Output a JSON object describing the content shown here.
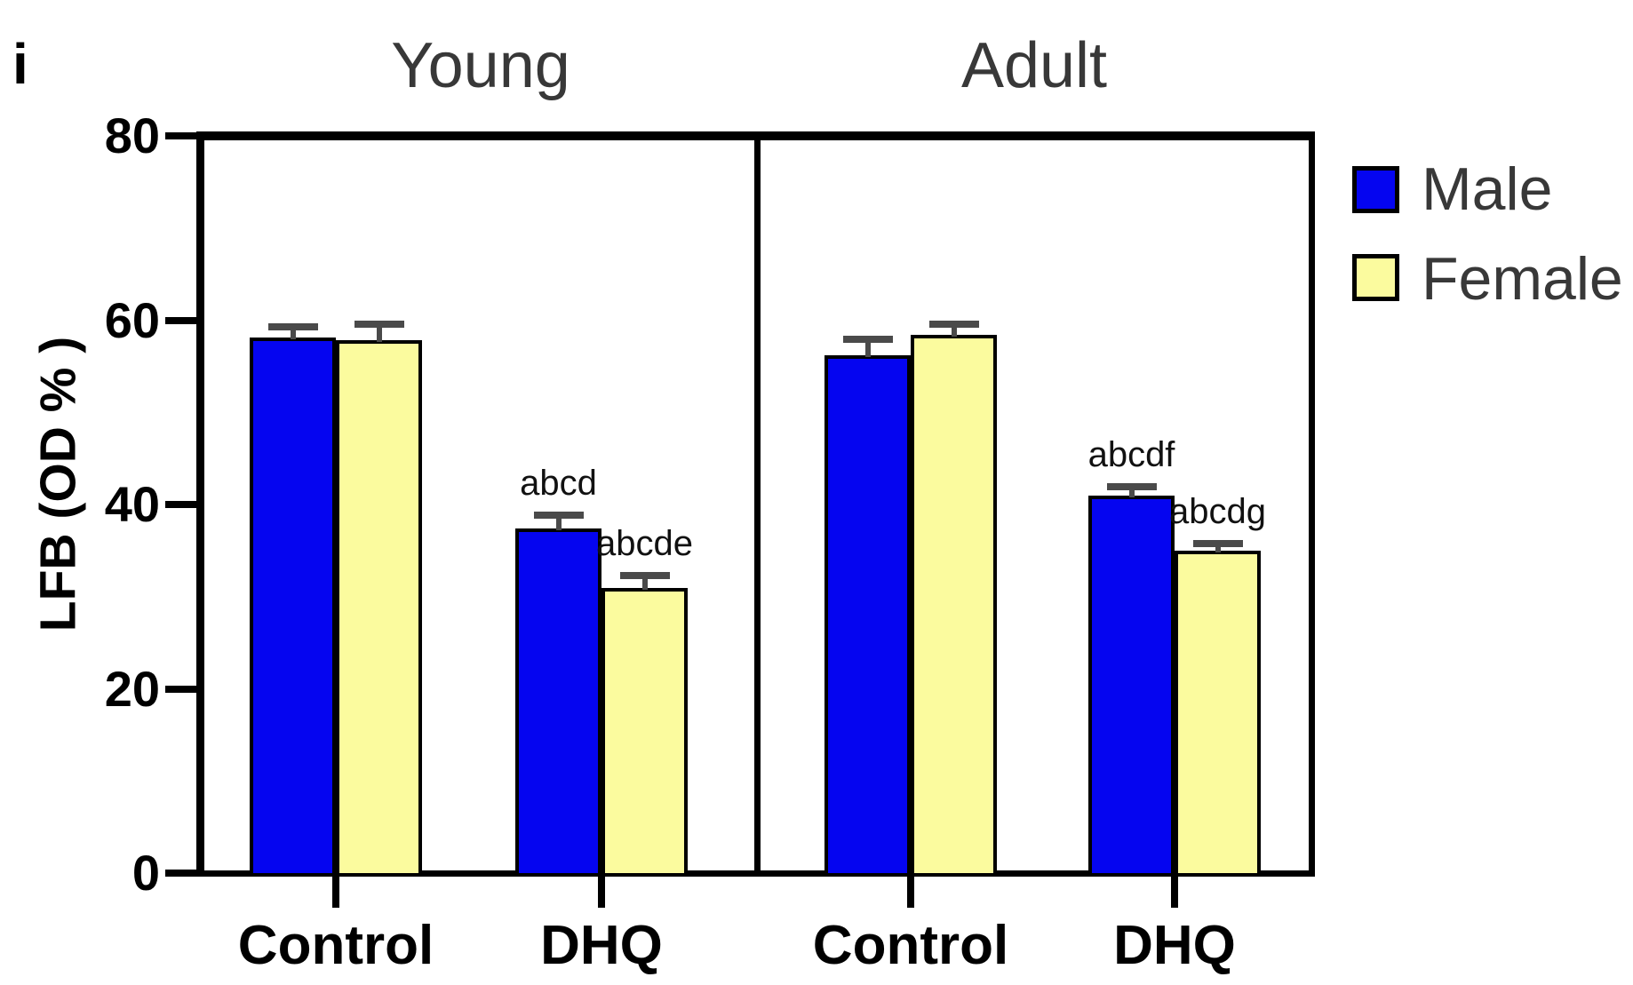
{
  "figure": {
    "panel_label": "i",
    "background": "#ffffff"
  },
  "chart_data": {
    "type": "grouped-bar",
    "ylabel": "LFB (OD % )",
    "ylim": [
      0,
      80
    ],
    "yticks": [
      0,
      20,
      40,
      60,
      80
    ],
    "grid": false,
    "legend_position": "top-right-outside",
    "axis_color": "#000000",
    "error_bar_color": "#4a4a4a",
    "series": [
      {
        "name": "Male",
        "color": "#0505F0"
      },
      {
        "name": "Female",
        "color": "#FBFB9E"
      }
    ],
    "legend": [
      {
        "label": "Male",
        "color": "#0505F0"
      },
      {
        "label": "Female",
        "color": "#FBFB9E"
      }
    ],
    "facets": [
      {
        "title": "Young",
        "groups": [
          {
            "category": "Control",
            "bars": [
              {
                "series": "Male",
                "value": 58.1,
                "sem": 1.2,
                "annotation": ""
              },
              {
                "series": "Female",
                "value": 57.8,
                "sem": 1.8,
                "annotation": ""
              }
            ]
          },
          {
            "category": "DHQ",
            "bars": [
              {
                "series": "Male",
                "value": 37.4,
                "sem": 1.4,
                "annotation": "abcd"
              },
              {
                "series": "Female",
                "value": 30.9,
                "sem": 1.4,
                "annotation": "abcde"
              }
            ]
          }
        ]
      },
      {
        "title": "Adult",
        "groups": [
          {
            "category": "Control",
            "bars": [
              {
                "series": "Male",
                "value": 56.2,
                "sem": 1.7,
                "annotation": ""
              },
              {
                "series": "Female",
                "value": 58.4,
                "sem": 1.2,
                "annotation": ""
              }
            ]
          },
          {
            "category": "DHQ",
            "bars": [
              {
                "series": "Male",
                "value": 41.0,
                "sem": 0.9,
                "annotation": "abcdf"
              },
              {
                "series": "Female",
                "value": 35.0,
                "sem": 0.8,
                "annotation": "abcdg"
              }
            ]
          }
        ]
      }
    ]
  }
}
